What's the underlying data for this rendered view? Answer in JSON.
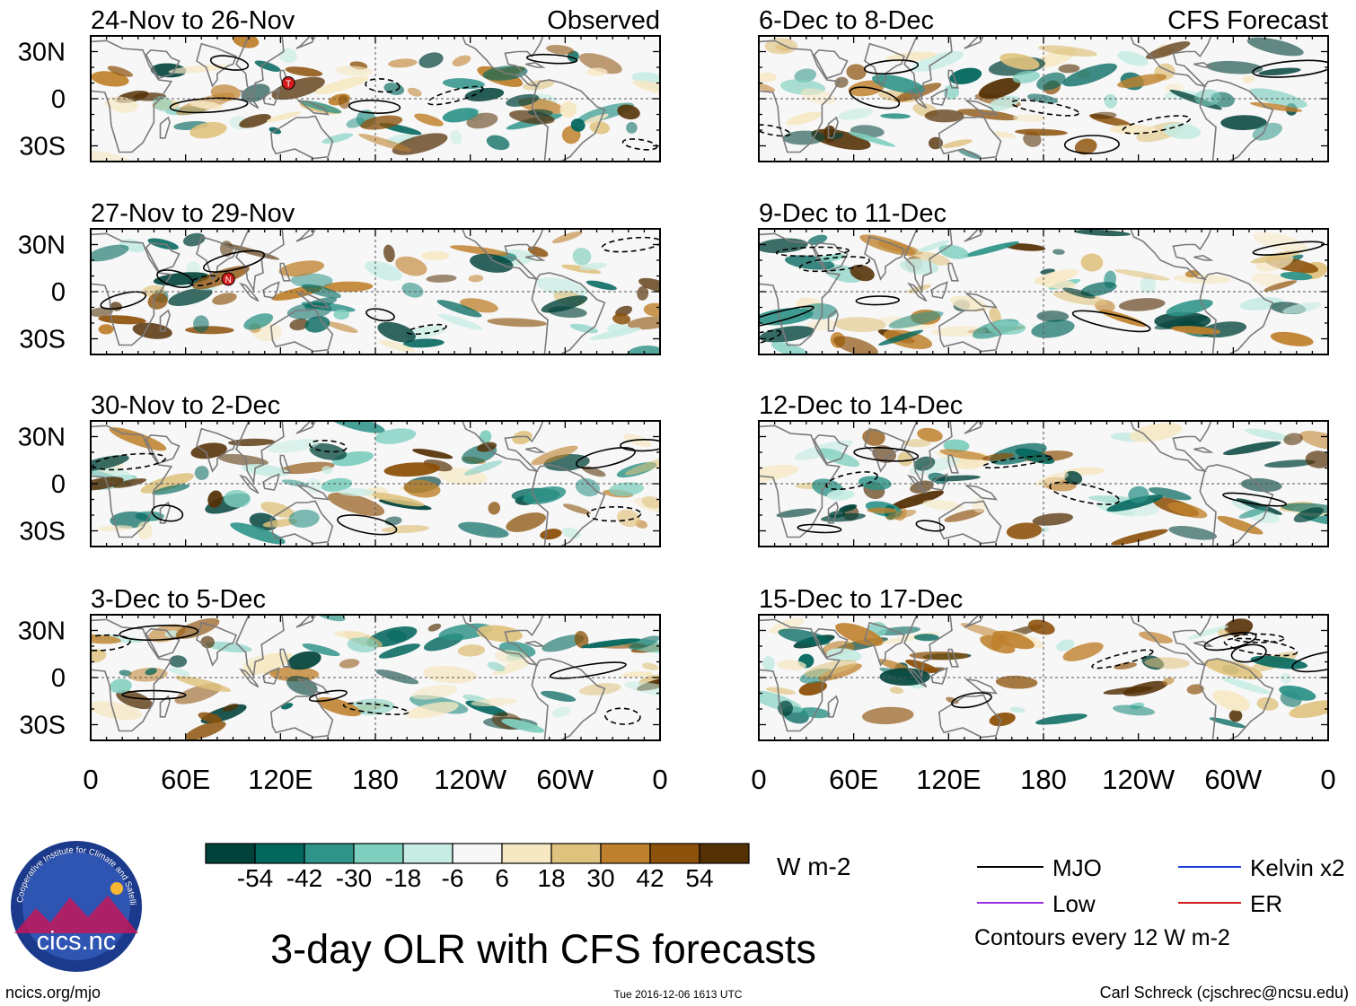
{
  "title": "3-day OLR with CFS forecasts",
  "footer": {
    "left": "ncics.org/mjo",
    "center": "Tue 2016-12-06 1613 UTC",
    "right": "Carl Schreck (cjschrec@ncsu.edu)"
  },
  "logo": {
    "wordmark": "cics.nc",
    "ring_text": "Cooperative Institute for Climate and Satellites"
  },
  "colorbar": {
    "units": "W m-2",
    "colors": [
      "#01423a",
      "#03675e",
      "#2e9388",
      "#7fcfbf",
      "#c6ece3",
      "#f7f7f7",
      "#f6e8c3",
      "#dfc27d",
      "#bf812d",
      "#8c510a",
      "#543005"
    ],
    "ticks": [
      "-54",
      "-42",
      "-30",
      "-18",
      "-6",
      "6",
      "18",
      "30",
      "42",
      "54"
    ]
  },
  "legend": {
    "items": [
      {
        "label": "MJO",
        "color": "#000000"
      },
      {
        "label": "Kelvin x2",
        "color": "#1a3fd6"
      },
      {
        "label": "Low",
        "color": "#9b30e0"
      },
      {
        "label": "ER",
        "color": "#d11a1a"
      }
    ],
    "note": "Contours every 12 W m-2"
  },
  "axes": {
    "x_ticks": [
      "0",
      "60E",
      "120E",
      "180",
      "120W",
      "60W",
      "0"
    ],
    "y_ticks": [
      "30N",
      "0",
      "30S"
    ]
  },
  "storm_markers": [
    {
      "panel": 0,
      "symbol": "T",
      "lon": 125,
      "lat": 10
    },
    {
      "panel": 1,
      "symbol": "N",
      "lon": 87,
      "lat": 8
    }
  ],
  "chart_data": [
    {
      "type": "heatmap",
      "column": "Observed",
      "title": "24-Nov to 26-Nov",
      "label": "Observed",
      "xlim": [
        0,
        360
      ],
      "ylim": [
        -40,
        40
      ],
      "seed": 3
    },
    {
      "type": "heatmap",
      "column": "Observed",
      "title": "27-Nov to 29-Nov",
      "seed": 7
    },
    {
      "type": "heatmap",
      "column": "Observed",
      "title": "30-Nov to 2-Dec",
      "seed": 11
    },
    {
      "type": "heatmap",
      "column": "Observed",
      "title": "3-Dec to 5-Dec",
      "seed": 17
    },
    {
      "type": "heatmap",
      "column": "CFS Forecast",
      "title": "6-Dec to 8-Dec",
      "label": "CFS Forecast",
      "xlim": [
        0,
        360
      ],
      "ylim": [
        -40,
        40
      ],
      "seed": 23
    },
    {
      "type": "heatmap",
      "column": "CFS Forecast",
      "title": "9-Dec to 11-Dec",
      "seed": 29
    },
    {
      "type": "heatmap",
      "column": "CFS Forecast",
      "title": "12-Dec to 14-Dec",
      "seed": 31
    },
    {
      "type": "heatmap",
      "column": "CFS Forecast",
      "title": "15-Dec to 17-Dec",
      "seed": 37
    }
  ]
}
